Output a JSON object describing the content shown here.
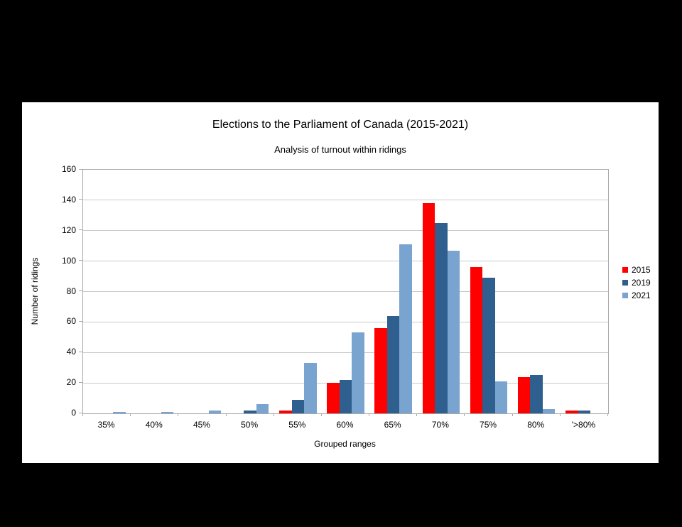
{
  "page": {
    "background_color": "#000000",
    "canvas_color": "#ffffff"
  },
  "chart_data": {
    "type": "bar",
    "title": "Elections to the Parliament of Canada (2015-2021)",
    "subtitle": "Analysis of turnout within ridings",
    "xlabel": "Grouped ranges",
    "ylabel": "Number of ridings",
    "categories": [
      "35%",
      "40%",
      "45%",
      "50%",
      "55%",
      "60%",
      "65%",
      "70%",
      "75%",
      "80%",
      "'>80%"
    ],
    "series": [
      {
        "name": "2015",
        "color": "#ff0000",
        "values": [
          0,
          0,
          0,
          0,
          2,
          20,
          56,
          138,
          96,
          24,
          2
        ]
      },
      {
        "name": "2019",
        "color": "#2e5f8f",
        "values": [
          0,
          0,
          0,
          2,
          9,
          22,
          64,
          125,
          89,
          25,
          2
        ]
      },
      {
        "name": "2021",
        "color": "#7aa4d0",
        "values": [
          1,
          1,
          2,
          6,
          33,
          53,
          111,
          107,
          21,
          3,
          0
        ]
      }
    ],
    "ylim": [
      0,
      160
    ],
    "yticks": [
      0,
      20,
      40,
      60,
      80,
      100,
      120,
      140,
      160
    ],
    "grid": "horizontal",
    "legend_position": "right",
    "colors": {
      "gridline": "#c9c9c9",
      "axis": "#a9a9a9",
      "text": "#000000"
    }
  }
}
